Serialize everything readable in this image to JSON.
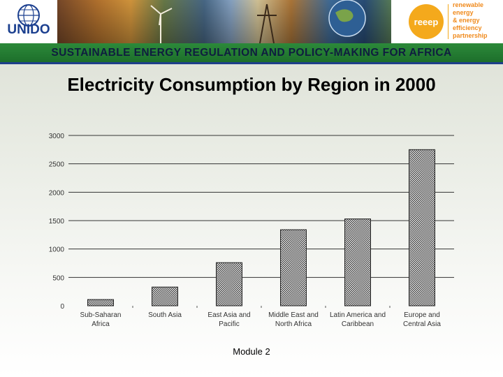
{
  "header": {
    "logo_text": "UNIDO",
    "partner_logo": "reeep",
    "partner_name": [
      "renewable",
      "energy",
      "& energy",
      "efficiency",
      "partnership"
    ],
    "banner_title": "SUSTAINABLE ENERGY REGULATION AND POLICY-MAKING FOR AFRICA",
    "accent_green": "#1f7a2e",
    "accent_orange": "#f4a91c"
  },
  "slide": {
    "title": "Electricity Consumption by Region in 2000",
    "footer": "Module 2"
  },
  "chart_data": {
    "type": "bar",
    "title": "",
    "xlabel": "",
    "ylabel": "",
    "ylim": [
      0,
      3000
    ],
    "yticks": [
      "3000",
      "2500",
      "2000",
      "1500",
      "1000",
      "500",
      "0"
    ],
    "ytick_values": [
      3000,
      2500,
      2000,
      1500,
      1000,
      500,
      0
    ],
    "grid": true,
    "categories": [
      [
        "Sub-Saharan",
        "Africa"
      ],
      [
        "South Asia"
      ],
      [
        "East Asia and",
        "Pacific"
      ],
      [
        "Middle East and",
        "North Africa"
      ],
      [
        "Latin America and",
        "Caribbean"
      ],
      [
        "Europe and",
        "Central Asia"
      ]
    ],
    "values": [
      110,
      330,
      760,
      1340,
      1530,
      2750
    ]
  }
}
